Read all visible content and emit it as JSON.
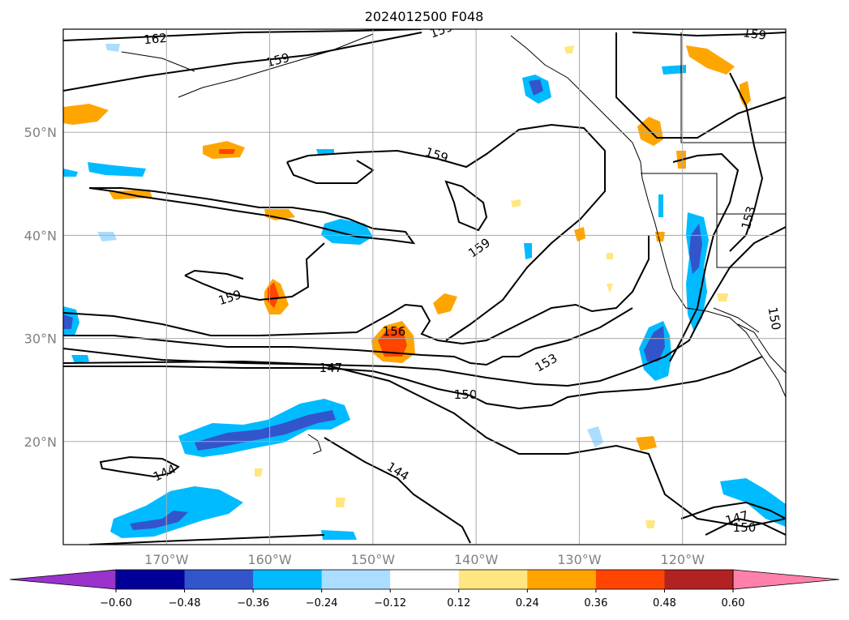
{
  "chart_data": {
    "type": "heatmap",
    "title": "2024012500 F048",
    "map_extent": {
      "lon": [
        -180,
        -110
      ],
      "lat": [
        10,
        60
      ]
    },
    "x_ticks": [
      {
        "lon": -170,
        "label": "170°W"
      },
      {
        "lon": -160,
        "label": "160°W"
      },
      {
        "lon": -150,
        "label": "150°W"
      },
      {
        "lon": -140,
        "label": "140°W"
      },
      {
        "lon": -130,
        "label": "130°W"
      },
      {
        "lon": -120,
        "label": "120°W"
      }
    ],
    "y_ticks": [
      {
        "lat": 20,
        "label": "20°N"
      },
      {
        "lat": 30,
        "label": "30°N"
      },
      {
        "lat": 40,
        "label": "40°N"
      },
      {
        "lat": 50,
        "label": "50°N"
      }
    ],
    "grid": true,
    "colorbar": {
      "orientation": "horizontal",
      "position": "bottom",
      "extend": "both",
      "tick_labels": [
        "−0.60",
        "−0.48",
        "−0.36",
        "−0.24",
        "−0.12",
        "0.12",
        "0.24",
        "0.36",
        "0.48",
        "0.60"
      ],
      "ticks": [
        -0.6,
        -0.48,
        -0.36,
        -0.24,
        -0.12,
        0.12,
        0.24,
        0.36,
        0.48,
        0.6
      ],
      "colors": [
        "#9933cc",
        "#000099",
        "#3355cc",
        "#00bbff",
        "#aaddff",
        "#ffffff",
        "#ffe680",
        "#ffa500",
        "#ff4500",
        "#b22222",
        "#ff80aa"
      ]
    },
    "contour_labels": [
      "162",
      "159",
      "159",
      "159",
      "159",
      "159",
      "159",
      "156",
      "153",
      "153",
      "150",
      "150",
      "150",
      "147",
      "147",
      "144",
      "144"
    ]
  }
}
